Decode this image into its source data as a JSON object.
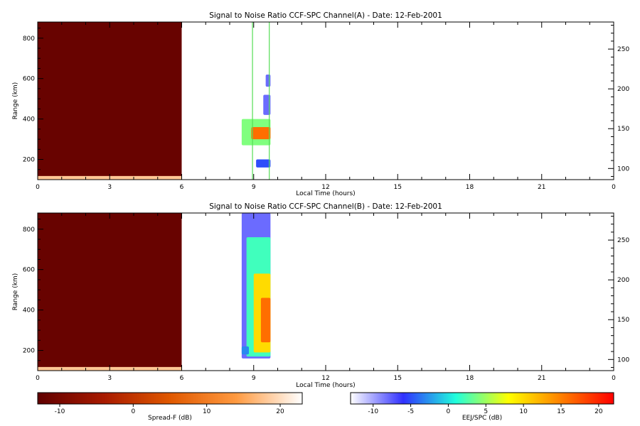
{
  "chart_data": [
    {
      "type": "heatmap",
      "title": "Signal to Noise Ratio CCF-SPC Channel(A) - Date: 12-Feb-2001",
      "xlabel": "Local Time (hours)",
      "ylabel": "Range (km)",
      "xlim": [
        0,
        24
      ],
      "ylim": [
        100,
        880
      ],
      "xticks": [
        "0",
        "3",
        "6",
        "9",
        "12",
        "15",
        "18",
        "21",
        "0"
      ],
      "xtick_values": [
        0,
        3,
        6,
        9,
        12,
        15,
        18,
        21,
        24
      ],
      "yticks": [
        "200",
        "400",
        "600",
        "800"
      ],
      "ytick_values": [
        200,
        400,
        600,
        800
      ],
      "right_yticks": [
        "100",
        "150",
        "200",
        "250"
      ],
      "right_ytick_values": [
        100,
        150,
        200,
        250
      ],
      "right_ylim": [
        86,
        284
      ],
      "regions": [
        {
          "scale": "spread-f",
          "x": [
            0,
            6
          ],
          "y": [
            100,
            880
          ],
          "value": -12
        },
        {
          "scale": "spread-f",
          "x": [
            0,
            6
          ],
          "y": [
            100,
            118
          ],
          "value": 18
        }
      ],
      "echoes": [
        {
          "x": [
            8.5,
            9.7
          ],
          "y": [
            270,
            400
          ],
          "value": 4
        },
        {
          "x": [
            8.9,
            9.7
          ],
          "y": [
            300,
            360
          ],
          "value": 16
        },
        {
          "x": [
            9.4,
            9.7
          ],
          "y": [
            420,
            520
          ],
          "value": -8
        },
        {
          "x": [
            9.5,
            9.7
          ],
          "y": [
            560,
            620
          ],
          "value": -8
        },
        {
          "x": [
            9.1,
            9.7
          ],
          "y": [
            160,
            200
          ],
          "value": -5
        }
      ],
      "vertical_lines": [
        {
          "x": 8.95,
          "color": "#55dd55"
        },
        {
          "x": 9.65,
          "color": "#55dd55"
        }
      ]
    },
    {
      "type": "heatmap",
      "title": "Signal to Noise Ratio CCF-SPC Channel(B) - Date: 12-Feb-2001",
      "xlabel": "Local Time (hours)",
      "ylabel": "Range (km)",
      "xlim": [
        0,
        24
      ],
      "ylim": [
        100,
        880
      ],
      "xticks": [
        "0",
        "3",
        "6",
        "9",
        "12",
        "15",
        "18",
        "21",
        "0"
      ],
      "xtick_values": [
        0,
        3,
        6,
        9,
        12,
        15,
        18,
        21,
        24
      ],
      "yticks": [
        "200",
        "400",
        "600",
        "800"
      ],
      "ytick_values": [
        200,
        400,
        600,
        800
      ],
      "right_yticks": [
        "100",
        "150",
        "200",
        "250"
      ],
      "right_ytick_values": [
        100,
        150,
        200,
        250
      ],
      "right_ylim": [
        86,
        284
      ],
      "regions": [
        {
          "scale": "spread-f",
          "x": [
            0,
            6
          ],
          "y": [
            100,
            880
          ],
          "value": -12
        },
        {
          "scale": "spread-f",
          "x": [
            0,
            6
          ],
          "y": [
            100,
            118
          ],
          "value": 18
        }
      ],
      "echoes": [
        {
          "x": [
            8.5,
            9.7
          ],
          "y": [
            160,
            880
          ],
          "value": -8
        },
        {
          "x": [
            8.7,
            9.7
          ],
          "y": [
            170,
            760
          ],
          "value": 2
        },
        {
          "x": [
            9.0,
            9.7
          ],
          "y": [
            190,
            580
          ],
          "value": 10
        },
        {
          "x": [
            9.3,
            9.7
          ],
          "y": [
            240,
            460
          ],
          "value": 16
        },
        {
          "x": [
            8.5,
            8.8
          ],
          "y": [
            180,
            220
          ],
          "value": -3
        }
      ],
      "vertical_lines": []
    }
  ],
  "colorbars": [
    {
      "label": "Spread-F (dB)",
      "range": [
        -13,
        23
      ],
      "ticks": [
        "-10",
        "0",
        "10",
        "20"
      ],
      "tick_values": [
        -10,
        0,
        10,
        20
      ],
      "colors": [
        "#600000",
        "#a81a00",
        "#e05800",
        "#ff9a40",
        "#ffffff"
      ]
    },
    {
      "label": "EEJ/SPC (dB)",
      "range": [
        -13,
        22
      ],
      "ticks": [
        "-10",
        "-5",
        "0",
        "5",
        "10",
        "15",
        "20"
      ],
      "tick_values": [
        -10,
        -5,
        0,
        5,
        10,
        15,
        20
      ],
      "colors": [
        "#ffffff",
        "#3030ff",
        "#20ffdc",
        "#ffff00",
        "#ff8000",
        "#ff0000"
      ]
    }
  ]
}
